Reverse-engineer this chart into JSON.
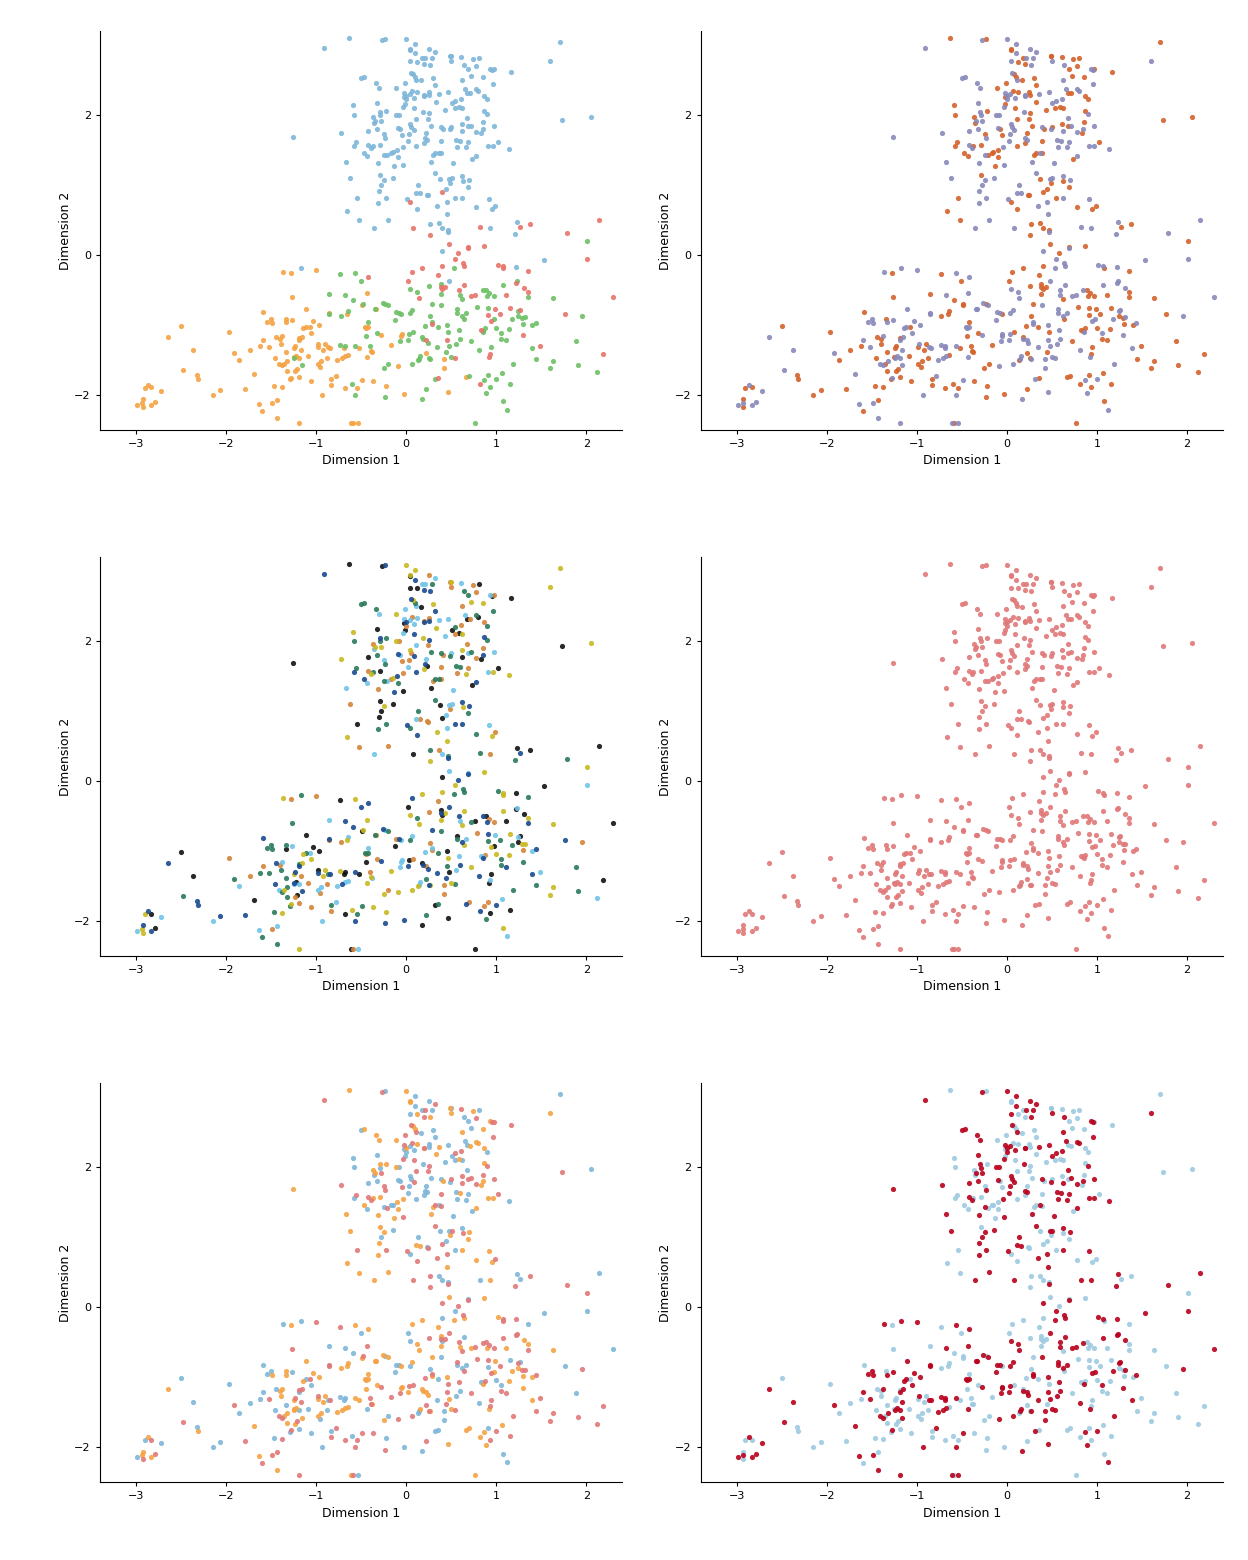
{
  "figsize": [
    12.48,
    15.6
  ],
  "dpi": 100,
  "xlim": [
    -3.4,
    2.4
  ],
  "ylim": [
    -2.5,
    3.2
  ],
  "xlabel": "Dimension 1",
  "ylabel": "Dimension 2",
  "xticks": [
    -3,
    -2,
    -1,
    0,
    1,
    2
  ],
  "yticks": [
    -2,
    0,
    2
  ],
  "cluster_colors": {
    "1": "#7EB6D9",
    "2": "#F5A244",
    "3": "#6DC066",
    "4": "#E8736B"
  },
  "stage_colors": {
    "S1 (CD4+/CD161-)": "#D4622A",
    "S2 (CD4-/CD161-)": "#8888BB"
  },
  "plate_colors": {
    "LCE508": "#111111",
    "LCE509": "#D4853A",
    "LCE511": "#6EC4E8",
    "LCE512": "#2A7A5A",
    "LCE513": "#C8B820",
    "LCE514": "#1A4A90"
  },
  "tissue_color": "#E07878",
  "donor_colors": {
    "1": "#7EB6D9",
    "2": "#F5A244",
    "3": "#E07878"
  },
  "group_colors": {
    "Thymus.S1 (CD4+/CD161-)": "#9ECAE1",
    "Thymus.S2 (CD4-/CD161-)": "#B8001C"
  },
  "point_size": 14,
  "alpha": 0.9,
  "legend_title_fontsize": 9,
  "legend_label_fontsize": 8,
  "axis_label_fontsize": 9,
  "tick_fontsize": 8
}
